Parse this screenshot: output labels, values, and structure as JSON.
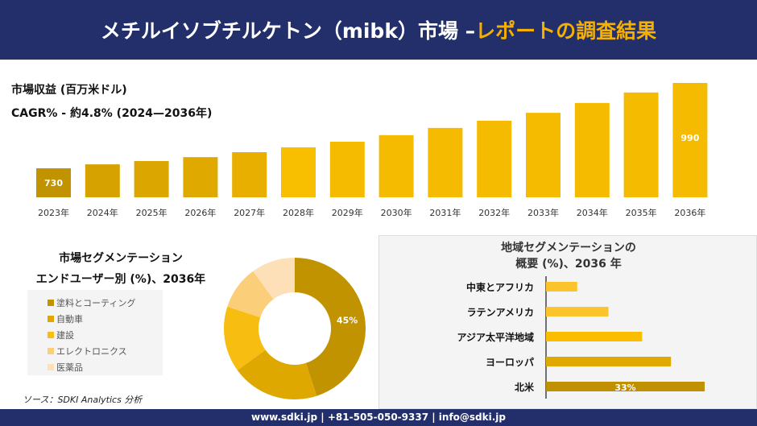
{
  "header": {
    "title_main": "メチルイソブチルケトン（mibk）市場 –",
    "title_accent": "レポートの調査結果"
  },
  "revenue": {
    "label": "市場収益 (百万米ドル)",
    "cagr": "CAGR% - 約4.8% (2024—2036年)"
  },
  "chart_data": [
    {
      "type": "bar",
      "categories": [
        "2023年",
        "2024年",
        "2025年",
        "2026年",
        "2027年",
        "2028年",
        "2029年",
        "2030年",
        "2031年",
        "2032年",
        "2033年",
        "2034年",
        "2035年",
        "2036年"
      ],
      "values": [
        730,
        742,
        752,
        764,
        779,
        794,
        811,
        831,
        853,
        875,
        899,
        929,
        961,
        990
      ],
      "data_labels": {
        "2023年": "730",
        "2036年": "990"
      }
    },
    {
      "type": "pie",
      "title": "市場セグメンテーション エンドユーザー別 (%)、2036年",
      "title_line1": "市場セグメンテーション",
      "title_line2": "エンドユーザー別 (%)、2036年",
      "labels": [
        "塗料とコーティング",
        "自動車",
        "建設",
        "エレクトロニクス",
        "医薬品"
      ],
      "values": [
        45,
        20,
        15,
        10,
        10
      ],
      "data_labels": [
        "45%"
      ],
      "colors": [
        "#c29300",
        "#dfa800",
        "#f7bd10",
        "#fbcf7a",
        "#fde0b8"
      ],
      "legend": "left"
    },
    {
      "type": "bar",
      "orientation": "horizontal",
      "title_line1": "地域セグメンテーションの",
      "title_line2": "概要 (%)、2036 年",
      "categories": [
        "中東とアフリカ",
        "ラテンアメリカ",
        "アジア太平洋地域",
        "ヨーロッパ",
        "北米"
      ],
      "values": [
        6.5,
        13,
        20,
        26,
        33
      ],
      "data_labels": {
        "北米": "33%"
      },
      "colors": [
        "#fcc42c",
        "#fcc42c",
        "#fbbd00",
        "#e0a900",
        "#c09000"
      ]
    }
  ],
  "source": "ソース：SDKI Analytics 分析",
  "footer": "www.sdki.jp | +81-505-050-9337 | info@sdki.jp"
}
